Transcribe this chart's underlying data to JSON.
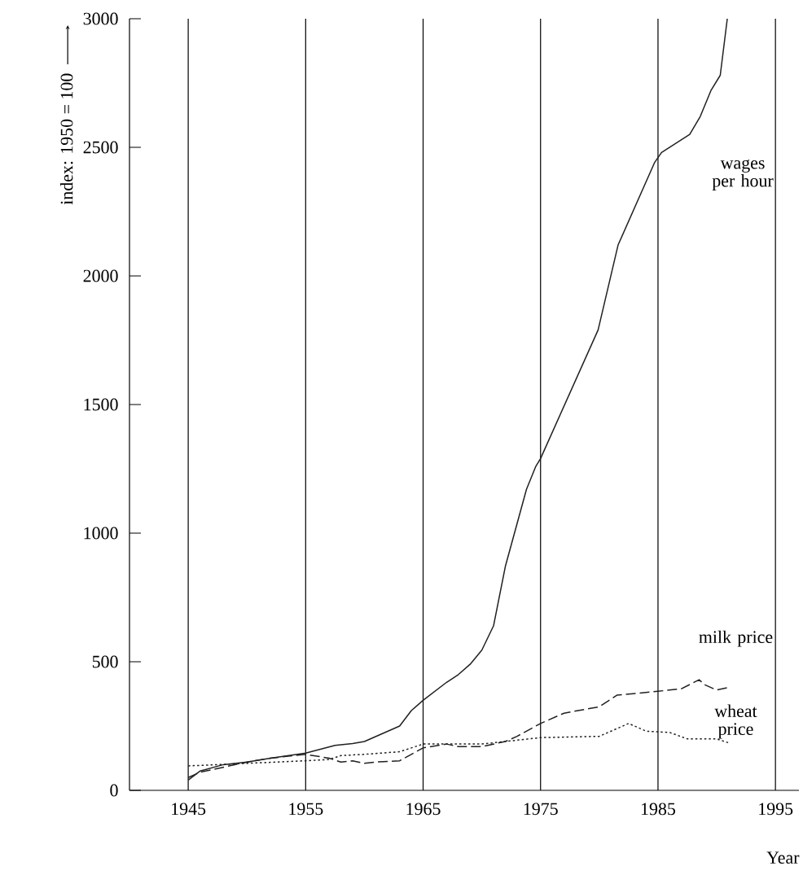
{
  "chart_data": {
    "type": "line",
    "xlabel": "Year",
    "ylabel": "index: 1950 = 100",
    "xlim": [
      1940,
      1997
    ],
    "ylim": [
      0,
      3000
    ],
    "xticks": [
      1945,
      1955,
      1965,
      1975,
      1985,
      1995
    ],
    "yticks": [
      0,
      500,
      1000,
      1500,
      2000,
      2500,
      3000
    ],
    "grid": "x",
    "legend": false,
    "series": [
      {
        "name": "wages per hour",
        "color": "#231f20",
        "line_style": "solid",
        "x": [
          1945,
          1946,
          1948,
          1950,
          1952,
          1955,
          1957.5,
          1959,
          1960,
          1963,
          1964,
          1965,
          1967,
          1968,
          1969,
          1970,
          1971,
          1972,
          1973.8,
          1974.6,
          1975,
          1979.9,
          1981.6,
          1984.7,
          1985.3,
          1987.7,
          1988.6,
          1989.5,
          1990.3,
          1990.9
        ],
        "values": [
          40,
          75,
          100,
          110,
          125,
          145,
          175,
          182,
          190,
          250,
          310,
          350,
          420,
          450,
          490,
          545,
          640,
          870,
          1170,
          1260,
          1290,
          1790,
          2120,
          2440,
          2480,
          2550,
          2620,
          2720,
          2780,
          3000
        ]
      },
      {
        "name": "milk price",
        "color": "#231f20",
        "line_style": "dashed",
        "x": [
          1945,
          1946,
          1948,
          1950,
          1952,
          1954,
          1955,
          1957,
          1958,
          1959,
          1960,
          1961,
          1963,
          1965,
          1967,
          1968,
          1970,
          1972,
          1973,
          1975,
          1977,
          1980,
          1981.5,
          1985,
          1987,
          1988.5,
          1989,
          1990,
          1991
        ],
        "values": [
          50,
          70,
          90,
          110,
          125,
          135,
          140,
          125,
          110,
          115,
          105,
          110,
          115,
          165,
          180,
          170,
          170,
          190,
          210,
          260,
          300,
          325,
          370,
          385,
          395,
          430,
          410,
          390,
          400
        ]
      },
      {
        "name": "wheat price",
        "color": "#231f20",
        "line_style": "dotted",
        "x": [
          1945,
          1950,
          1955,
          1957,
          1958,
          1960,
          1963,
          1965,
          1970,
          1973,
          1975,
          1980,
          1982.5,
          1984,
          1986,
          1987.5,
          1990,
          1991
        ],
        "values": [
          95,
          105,
          115,
          120,
          135,
          140,
          150,
          180,
          180,
          195,
          205,
          210,
          260,
          230,
          225,
          200,
          200,
          185
        ]
      }
    ]
  }
}
